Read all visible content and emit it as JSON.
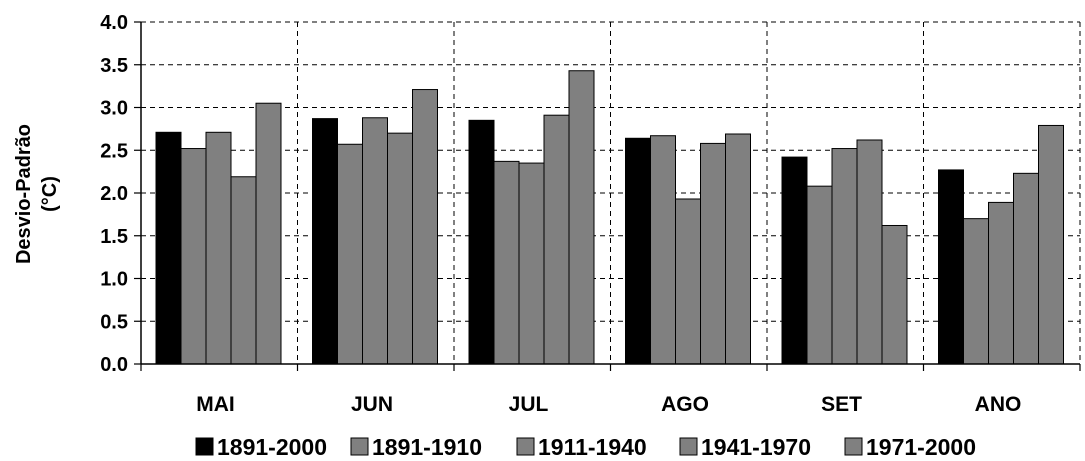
{
  "chart_data": {
    "type": "bar",
    "categories": [
      "MAI",
      "JUN",
      "JUL",
      "AGO",
      "SET",
      "ANO"
    ],
    "ylabel_line1": "Desvio-Padrão",
    "ylabel_line2": "(°C)",
    "ylim": [
      0,
      4.0
    ],
    "yticks": [
      "0.0",
      "0.5",
      "1.0",
      "1.5",
      "2.0",
      "2.5",
      "3.0",
      "3.5",
      "4.0"
    ],
    "grid": true,
    "legend_position": "bottom",
    "series": [
      {
        "name": "1891-2000",
        "color": "#000000",
        "values": [
          2.71,
          2.87,
          2.85,
          2.64,
          2.42,
          2.27
        ]
      },
      {
        "name": "1891-1910",
        "color": "#808080",
        "values": [
          2.52,
          2.57,
          2.37,
          2.67,
          2.08,
          1.7
        ]
      },
      {
        "name": "1911-1940",
        "color": "#808080",
        "values": [
          2.71,
          2.88,
          2.35,
          1.93,
          2.52,
          1.89
        ]
      },
      {
        "name": "1941-1970",
        "color": "#808080",
        "values": [
          2.19,
          2.7,
          2.91,
          2.58,
          2.62,
          2.23
        ]
      },
      {
        "name": "1971-2000",
        "color": "#808080",
        "values": [
          3.05,
          3.21,
          3.43,
          2.69,
          1.62,
          2.79
        ]
      }
    ]
  }
}
